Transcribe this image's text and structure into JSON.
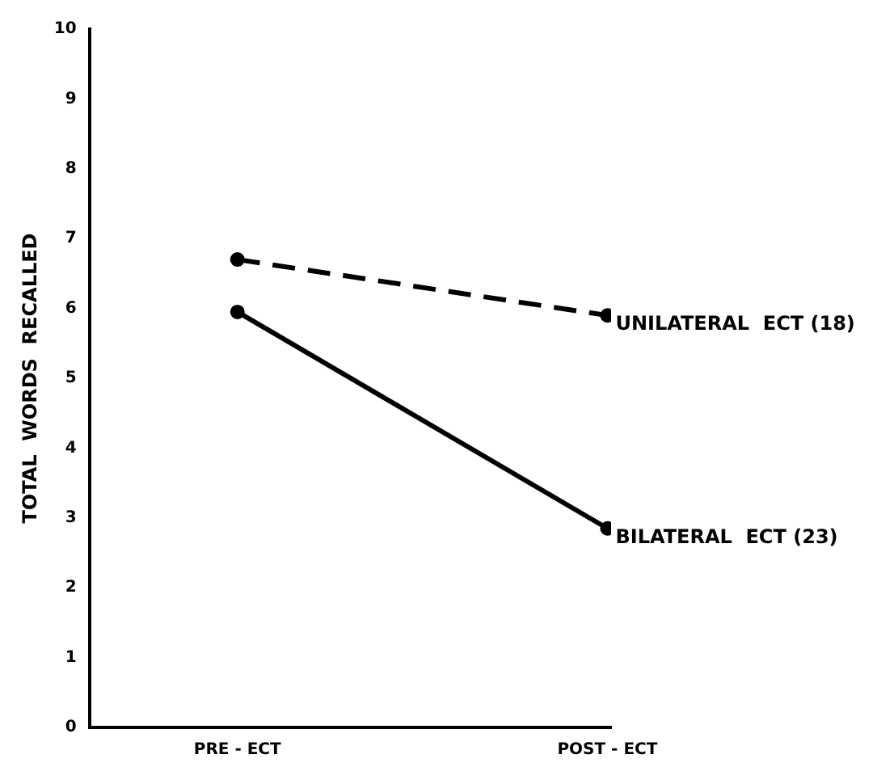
{
  "chart_data": {
    "type": "line",
    "ylabel": "TOTAL  WORDS  RECALLED",
    "categories": [
      "PRE - ECT",
      "POST - ECT"
    ],
    "series": [
      {
        "name": "UNILATERAL  ECT (18)",
        "color": "#000000",
        "line_style": "dashed",
        "values": [
          6.7,
          5.9
        ]
      },
      {
        "name": "BILATERAL  ECT (23)",
        "color": "#000000",
        "line_style": "solid",
        "values": [
          5.95,
          2.85
        ]
      }
    ],
    "ylim": [
      0,
      10
    ],
    "yticks": [
      0,
      1,
      2,
      3,
      4,
      5,
      6,
      7,
      8,
      9,
      10
    ],
    "grid": false,
    "legend": false,
    "marker": "circle"
  }
}
